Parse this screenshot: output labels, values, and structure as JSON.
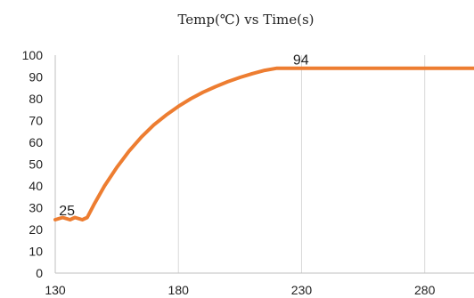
{
  "chart_data": {
    "type": "line",
    "title": "Temp(℃) vs Time(s)",
    "xlabel": "",
    "ylabel": "",
    "xlim": [
      130,
      300
    ],
    "ylim": [
      0,
      100
    ],
    "x_ticks": [
      130,
      180,
      230,
      280
    ],
    "y_ticks": [
      0,
      10,
      20,
      30,
      40,
      50,
      60,
      70,
      80,
      90,
      100
    ],
    "grid": {
      "vertical": true,
      "horizontal": false
    },
    "series": [
      {
        "color": "#ED7D31",
        "x": [
          130,
          133,
          136,
          138,
          141,
          143,
          146,
          150,
          155,
          160,
          165,
          170,
          175,
          180,
          185,
          190,
          195,
          200,
          205,
          210,
          215,
          220,
          225,
          230,
          240,
          250,
          260,
          270,
          280,
          290,
          300
        ],
        "y": [
          24.5,
          25.5,
          24.5,
          25.5,
          24.5,
          25.5,
          32,
          40,
          48.5,
          56,
          62.5,
          68,
          72.5,
          76.5,
          80,
          83,
          85.5,
          87.8,
          89.8,
          91.5,
          93,
          94,
          94,
          94,
          94,
          94,
          94,
          94,
          94,
          94,
          94
        ]
      }
    ],
    "data_labels": [
      {
        "x": 138,
        "y": 25,
        "text": "25"
      },
      {
        "x": 233,
        "y": 94,
        "text": "94"
      }
    ]
  }
}
